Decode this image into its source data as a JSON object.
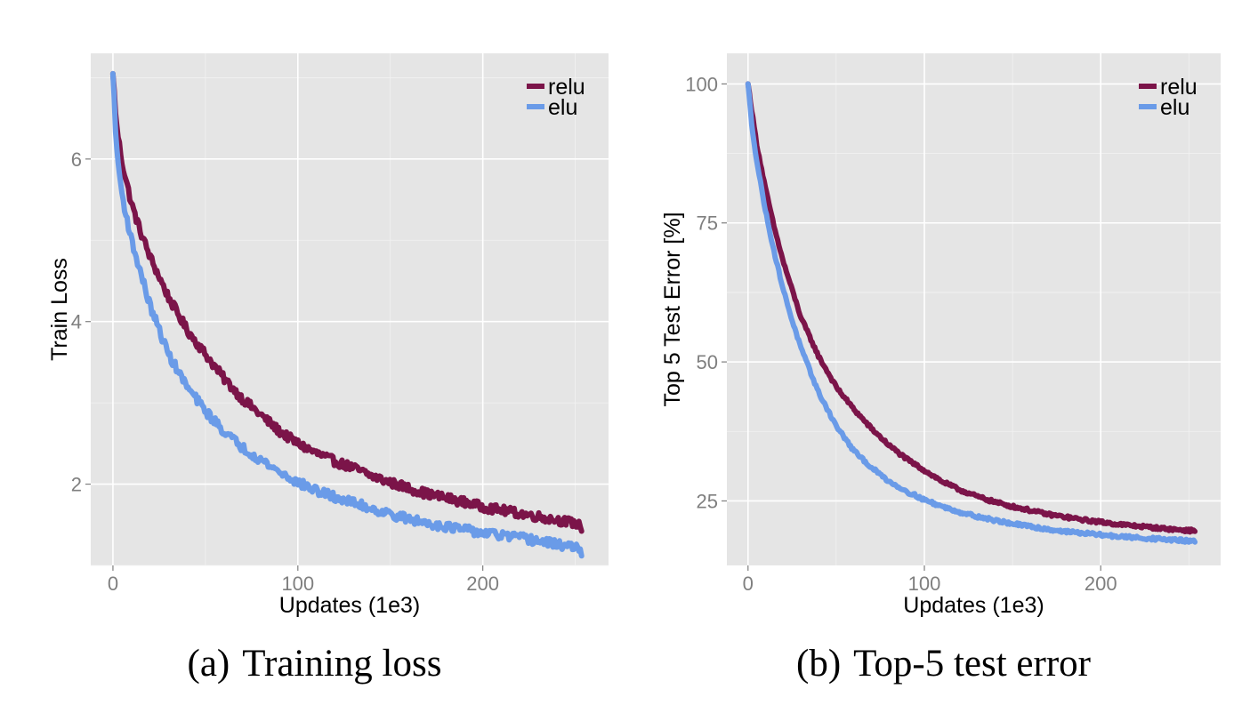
{
  "chart_data": [
    {
      "type": "line",
      "caption_tag": "(a)",
      "caption_text": "Training loss",
      "xlabel": "Updates (1e3)",
      "ylabel": "Train Loss",
      "xlim": [
        -12,
        268
      ],
      "ylim": [
        1.0,
        7.3
      ],
      "xticks": [
        0,
        100,
        200
      ],
      "yticks": [
        2,
        4,
        6
      ],
      "grid": true,
      "legend_position": "top-right",
      "series": [
        {
          "name": "relu",
          "color": "#7b1449",
          "x": [
            0,
            2,
            5,
            10,
            15,
            20,
            25,
            30,
            40,
            50,
            60,
            70,
            80,
            90,
            100,
            110,
            120,
            130,
            140,
            150,
            160,
            170,
            180,
            190,
            200,
            210,
            220,
            230,
            240,
            250,
            254
          ],
          "y": [
            7.05,
            6.4,
            5.95,
            5.45,
            5.1,
            4.8,
            4.55,
            4.3,
            3.9,
            3.6,
            3.3,
            3.05,
            2.85,
            2.65,
            2.5,
            2.38,
            2.28,
            2.2,
            2.1,
            2.02,
            1.95,
            1.88,
            1.83,
            1.78,
            1.72,
            1.68,
            1.64,
            1.6,
            1.56,
            1.52,
            1.46
          ]
        },
        {
          "name": "elu",
          "color": "#6a9be8",
          "x": [
            0,
            2,
            5,
            10,
            15,
            20,
            25,
            30,
            40,
            50,
            60,
            70,
            80,
            90,
            100,
            110,
            120,
            130,
            140,
            150,
            160,
            170,
            180,
            190,
            200,
            210,
            220,
            230,
            240,
            250,
            254
          ],
          "y": [
            7.05,
            6.1,
            5.55,
            5.0,
            4.6,
            4.2,
            3.9,
            3.6,
            3.2,
            2.9,
            2.65,
            2.45,
            2.3,
            2.15,
            2.02,
            1.92,
            1.84,
            1.77,
            1.7,
            1.63,
            1.57,
            1.52,
            1.48,
            1.44,
            1.4,
            1.37,
            1.34,
            1.3,
            1.26,
            1.22,
            1.16
          ]
        }
      ]
    },
    {
      "type": "line",
      "caption_tag": "(b)",
      "caption_text": "Top-5 test error",
      "xlabel": "Updates (1e3)",
      "ylabel": "Top 5 Test Error [%]",
      "xlim": [
        -12,
        268
      ],
      "ylim": [
        13.4,
        105.5
      ],
      "xticks": [
        0,
        100,
        200
      ],
      "yticks": [
        25,
        50,
        75,
        100
      ],
      "grid": true,
      "legend_position": "top-right",
      "series": [
        {
          "name": "relu",
          "color": "#7b1449",
          "x": [
            0,
            2,
            5,
            10,
            15,
            20,
            25,
            30,
            40,
            50,
            60,
            70,
            80,
            90,
            100,
            110,
            120,
            130,
            140,
            150,
            160,
            170,
            180,
            190,
            200,
            210,
            220,
            230,
            240,
            250,
            254
          ],
          "y": [
            100,
            95.5,
            89,
            81,
            74,
            68,
            63,
            58,
            51,
            45.5,
            41.5,
            38,
            35,
            32.5,
            30.5,
            28.5,
            27,
            25.8,
            24.8,
            24,
            23.3,
            22.6,
            22.1,
            21.6,
            21.2,
            20.8,
            20.5,
            20.2,
            19.9,
            19.7,
            19.6
          ]
        },
        {
          "name": "elu",
          "color": "#6a9be8",
          "x": [
            0,
            2,
            5,
            10,
            15,
            20,
            25,
            30,
            40,
            50,
            60,
            70,
            80,
            90,
            100,
            110,
            120,
            130,
            140,
            150,
            160,
            170,
            180,
            190,
            200,
            210,
            220,
            230,
            240,
            250,
            254
          ],
          "y": [
            100,
            93,
            86,
            77,
            69.5,
            63,
            57.5,
            52.5,
            44.5,
            38.5,
            34,
            31,
            28.5,
            26.7,
            25.2,
            24,
            23,
            22.2,
            21.5,
            20.9,
            20.4,
            19.9,
            19.5,
            19.2,
            18.9,
            18.6,
            18.4,
            18.2,
            18,
            17.8,
            17.7
          ]
        }
      ]
    }
  ]
}
